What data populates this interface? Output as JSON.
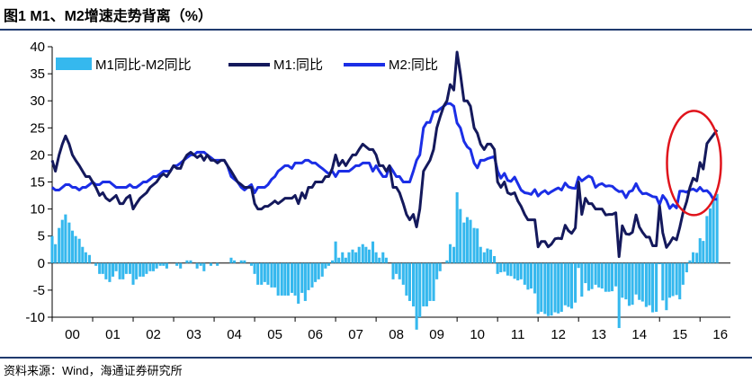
{
  "title": "图1  M1、M2增速走势背离（%）",
  "source": "资料来源：Wind，海通证券研究所",
  "chart_data": {
    "type": "bar+line",
    "ylim": [
      -10,
      40
    ],
    "yticks": [
      -10,
      -5,
      0,
      5,
      10,
      15,
      20,
      25,
      30,
      35,
      40
    ],
    "xticks": [
      "00",
      "01",
      "02",
      "03",
      "04",
      "05",
      "06",
      "07",
      "08",
      "09",
      "10",
      "11",
      "12",
      "13",
      "14",
      "15",
      "16"
    ],
    "x_start": 2000.0,
    "x_end": 2016.75,
    "legend": [
      "M1同比-M2同比",
      "M1:同比",
      "M2:同比"
    ],
    "legend_position": "top",
    "colors": {
      "diff": "#35b8ee",
      "m1": "#14195c",
      "m2": "#1b2ee6",
      "circle": "#e0141c"
    },
    "annotation": "red ellipse highlighting 2015–2016 divergence",
    "m1": [
      [
        2000.0,
        19
      ],
      [
        2000.08,
        17
      ],
      [
        2000.17,
        20
      ],
      [
        2000.25,
        22
      ],
      [
        2000.33,
        23.5
      ],
      [
        2000.42,
        22
      ],
      [
        2000.5,
        20
      ],
      [
        2000.58,
        19
      ],
      [
        2000.67,
        18
      ],
      [
        2000.75,
        17
      ],
      [
        2000.83,
        16
      ],
      [
        2000.92,
        16
      ],
      [
        2001.0,
        15
      ],
      [
        2001.08,
        14
      ],
      [
        2001.17,
        12.5
      ],
      [
        2001.25,
        13
      ],
      [
        2001.33,
        12
      ],
      [
        2001.42,
        11.5
      ],
      [
        2001.5,
        12
      ],
      [
        2001.58,
        12.5
      ],
      [
        2001.67,
        11
      ],
      [
        2001.75,
        11
      ],
      [
        2001.83,
        12
      ],
      [
        2001.92,
        12.5
      ],
      [
        2002.0,
        10
      ],
      [
        2002.08,
        11
      ],
      [
        2002.17,
        12
      ],
      [
        2002.25,
        12.5
      ],
      [
        2002.33,
        13
      ],
      [
        2002.42,
        14
      ],
      [
        2002.5,
        14.5
      ],
      [
        2002.58,
        15
      ],
      [
        2002.67,
        16
      ],
      [
        2002.75,
        16.5
      ],
      [
        2002.83,
        16
      ],
      [
        2002.92,
        17
      ],
      [
        2003.0,
        18
      ],
      [
        2003.08,
        17.5
      ],
      [
        2003.17,
        17.5
      ],
      [
        2003.25,
        19
      ],
      [
        2003.33,
        20
      ],
      [
        2003.42,
        20.5
      ],
      [
        2003.5,
        20
      ],
      [
        2003.58,
        19.5
      ],
      [
        2003.67,
        20
      ],
      [
        2003.75,
        19
      ],
      [
        2003.83,
        20
      ],
      [
        2003.92,
        19
      ],
      [
        2004.0,
        19
      ],
      [
        2004.08,
        18.5
      ],
      [
        2004.17,
        19
      ],
      [
        2004.25,
        19
      ],
      [
        2004.33,
        18
      ],
      [
        2004.42,
        17
      ],
      [
        2004.5,
        16
      ],
      [
        2004.58,
        15
      ],
      [
        2004.67,
        14.5
      ],
      [
        2004.75,
        14
      ],
      [
        2004.83,
        14
      ],
      [
        2004.92,
        14
      ],
      [
        2005.0,
        11
      ],
      [
        2005.08,
        10
      ],
      [
        2005.17,
        10
      ],
      [
        2005.25,
        10.5
      ],
      [
        2005.33,
        10.5
      ],
      [
        2005.42,
        11
      ],
      [
        2005.5,
        11.5
      ],
      [
        2005.58,
        11
      ],
      [
        2005.67,
        11.5
      ],
      [
        2005.75,
        12
      ],
      [
        2005.83,
        12
      ],
      [
        2005.92,
        12
      ],
      [
        2006.0,
        12.5
      ],
      [
        2006.08,
        11
      ],
      [
        2006.17,
        13
      ],
      [
        2006.25,
        12
      ],
      [
        2006.33,
        14
      ],
      [
        2006.42,
        14
      ],
      [
        2006.5,
        15
      ],
      [
        2006.58,
        15
      ],
      [
        2006.67,
        15
      ],
      [
        2006.75,
        16
      ],
      [
        2006.83,
        16
      ],
      [
        2006.92,
        17.5
      ],
      [
        2007.0,
        20
      ],
      [
        2007.08,
        18
      ],
      [
        2007.17,
        19
      ],
      [
        2007.25,
        18
      ],
      [
        2007.33,
        19
      ],
      [
        2007.42,
        20
      ],
      [
        2007.5,
        20
      ],
      [
        2007.58,
        21
      ],
      [
        2007.67,
        22
      ],
      [
        2007.75,
        21.5
      ],
      [
        2007.83,
        21
      ],
      [
        2007.92,
        21
      ],
      [
        2008.0,
        20
      ],
      [
        2008.08,
        18
      ],
      [
        2008.17,
        18
      ],
      [
        2008.25,
        17
      ],
      [
        2008.33,
        18
      ],
      [
        2008.42,
        14
      ],
      [
        2008.5,
        14
      ],
      [
        2008.58,
        13
      ],
      [
        2008.67,
        11
      ],
      [
        2008.75,
        9
      ],
      [
        2008.83,
        8
      ],
      [
        2008.92,
        9
      ],
      [
        2009.0,
        6.7
      ],
      [
        2009.08,
        10
      ],
      [
        2009.17,
        17
      ],
      [
        2009.25,
        18
      ],
      [
        2009.33,
        19
      ],
      [
        2009.42,
        21
      ],
      [
        2009.5,
        25
      ],
      [
        2009.58,
        27
      ],
      [
        2009.67,
        29
      ],
      [
        2009.75,
        30
      ],
      [
        2009.83,
        33
      ],
      [
        2009.92,
        32
      ],
      [
        2010.0,
        39
      ],
      [
        2010.08,
        35
      ],
      [
        2010.17,
        30
      ],
      [
        2010.25,
        30
      ],
      [
        2010.33,
        29
      ],
      [
        2010.42,
        25
      ],
      [
        2010.5,
        24
      ],
      [
        2010.58,
        22
      ],
      [
        2010.67,
        21
      ],
      [
        2010.75,
        22
      ],
      [
        2010.83,
        22
      ],
      [
        2010.92,
        21
      ],
      [
        2011.0,
        15
      ],
      [
        2011.08,
        14
      ],
      [
        2011.17,
        15
      ],
      [
        2011.25,
        13
      ],
      [
        2011.33,
        12.7
      ],
      [
        2011.42,
        13
      ],
      [
        2011.5,
        11.5
      ],
      [
        2011.58,
        10.5
      ],
      [
        2011.67,
        9
      ],
      [
        2011.75,
        8
      ],
      [
        2011.83,
        8
      ],
      [
        2011.92,
        8
      ],
      [
        2012.0,
        3
      ],
      [
        2012.08,
        4
      ],
      [
        2012.17,
        4
      ],
      [
        2012.25,
        3
      ],
      [
        2012.33,
        3.5
      ],
      [
        2012.42,
        4.5
      ],
      [
        2012.5,
        4.6
      ],
      [
        2012.58,
        4.5
      ],
      [
        2012.67,
        7
      ],
      [
        2012.75,
        6
      ],
      [
        2012.83,
        5.5
      ],
      [
        2012.92,
        6.5
      ],
      [
        2013.0,
        15
      ],
      [
        2013.08,
        9
      ],
      [
        2013.17,
        12
      ],
      [
        2013.25,
        11
      ],
      [
        2013.33,
        11
      ],
      [
        2013.42,
        10
      ],
      [
        2013.5,
        10
      ],
      [
        2013.58,
        10
      ],
      [
        2013.67,
        8.9
      ],
      [
        2013.75,
        9
      ],
      [
        2013.83,
        9
      ],
      [
        2013.92,
        9.3
      ],
      [
        2014.0,
        1.2
      ],
      [
        2014.08,
        6.9
      ],
      [
        2014.17,
        5.4
      ],
      [
        2014.25,
        5.3
      ],
      [
        2014.33,
        5.7
      ],
      [
        2014.42,
        8.9
      ],
      [
        2014.5,
        6.7
      ],
      [
        2014.58,
        5.7
      ],
      [
        2014.67,
        4.8
      ],
      [
        2014.75,
        4.8
      ],
      [
        2014.83,
        3.2
      ],
      [
        2014.92,
        3.2
      ],
      [
        2015.0,
        10.6
      ],
      [
        2015.08,
        5.6
      ],
      [
        2015.17,
        2.9
      ],
      [
        2015.25,
        3.7
      ],
      [
        2015.33,
        4.7
      ],
      [
        2015.42,
        4.3
      ],
      [
        2015.5,
        6.6
      ],
      [
        2015.58,
        9.3
      ],
      [
        2015.67,
        11.4
      ],
      [
        2015.75,
        14
      ],
      [
        2015.83,
        15.7
      ],
      [
        2015.92,
        15.2
      ],
      [
        2016.0,
        18.6
      ],
      [
        2016.08,
        17.4
      ],
      [
        2016.17,
        22.1
      ],
      [
        2016.25,
        22.9
      ],
      [
        2016.33,
        23.7
      ],
      [
        2016.42,
        24.6
      ]
    ],
    "m2": [
      [
        2000.0,
        14
      ],
      [
        2000.08,
        13.5
      ],
      [
        2000.17,
        13.5
      ],
      [
        2000.25,
        14
      ],
      [
        2000.33,
        14.5
      ],
      [
        2000.42,
        14.5
      ],
      [
        2000.5,
        14
      ],
      [
        2000.58,
        14
      ],
      [
        2000.67,
        13.5
      ],
      [
        2000.75,
        14
      ],
      [
        2000.83,
        14
      ],
      [
        2000.92,
        14.5
      ],
      [
        2001.0,
        15
      ],
      [
        2001.08,
        14.5
      ],
      [
        2001.17,
        14.5
      ],
      [
        2001.25,
        15
      ],
      [
        2001.33,
        15
      ],
      [
        2001.42,
        15
      ],
      [
        2001.5,
        14.5
      ],
      [
        2001.58,
        14
      ],
      [
        2001.67,
        14
      ],
      [
        2001.75,
        14
      ],
      [
        2001.83,
        14
      ],
      [
        2001.92,
        14.5
      ],
      [
        2002.0,
        14
      ],
      [
        2002.08,
        14
      ],
      [
        2002.17,
        14.5
      ],
      [
        2002.25,
        15
      ],
      [
        2002.33,
        15
      ],
      [
        2002.42,
        15.5
      ],
      [
        2002.5,
        16
      ],
      [
        2002.58,
        16
      ],
      [
        2002.67,
        16.5
      ],
      [
        2002.75,
        17
      ],
      [
        2002.83,
        17
      ],
      [
        2002.92,
        17
      ],
      [
        2003.0,
        18
      ],
      [
        2003.08,
        18
      ],
      [
        2003.17,
        18.5
      ],
      [
        2003.25,
        19
      ],
      [
        2003.33,
        19.5
      ],
      [
        2003.42,
        20
      ],
      [
        2003.5,
        20
      ],
      [
        2003.58,
        20.5
      ],
      [
        2003.67,
        20.5
      ],
      [
        2003.75,
        20.5
      ],
      [
        2003.83,
        20
      ],
      [
        2003.92,
        19.5
      ],
      [
        2004.0,
        19
      ],
      [
        2004.08,
        19
      ],
      [
        2004.17,
        19
      ],
      [
        2004.25,
        19
      ],
      [
        2004.33,
        18
      ],
      [
        2004.42,
        16
      ],
      [
        2004.5,
        15.5
      ],
      [
        2004.58,
        15
      ],
      [
        2004.67,
        14
      ],
      [
        2004.75,
        13.5
      ],
      [
        2004.83,
        14
      ],
      [
        2004.92,
        14.5
      ],
      [
        2005.0,
        13
      ],
      [
        2005.08,
        14
      ],
      [
        2005.17,
        14
      ],
      [
        2005.25,
        14
      ],
      [
        2005.33,
        14.5
      ],
      [
        2005.42,
        15.5
      ],
      [
        2005.5,
        16
      ],
      [
        2005.58,
        17
      ],
      [
        2005.67,
        17.5
      ],
      [
        2005.75,
        18
      ],
      [
        2005.83,
        18
      ],
      [
        2005.92,
        17.5
      ],
      [
        2006.0,
        18.5
      ],
      [
        2006.08,
        18.5
      ],
      [
        2006.17,
        18.5
      ],
      [
        2006.25,
        19
      ],
      [
        2006.33,
        19
      ],
      [
        2006.42,
        18.5
      ],
      [
        2006.5,
        18.5
      ],
      [
        2006.58,
        18
      ],
      [
        2006.67,
        17.5
      ],
      [
        2006.75,
        17
      ],
      [
        2006.83,
        16.5
      ],
      [
        2006.92,
        17
      ],
      [
        2007.0,
        16
      ],
      [
        2007.08,
        17
      ],
      [
        2007.17,
        17
      ],
      [
        2007.25,
        17
      ],
      [
        2007.33,
        17
      ],
      [
        2007.42,
        17.5
      ],
      [
        2007.5,
        18
      ],
      [
        2007.58,
        18
      ],
      [
        2007.67,
        18.5
      ],
      [
        2007.75,
        18.5
      ],
      [
        2007.83,
        18.5
      ],
      [
        2007.92,
        17
      ],
      [
        2008.0,
        18
      ],
      [
        2008.08,
        17
      ],
      [
        2008.17,
        16
      ],
      [
        2008.25,
        16
      ],
      [
        2008.33,
        18
      ],
      [
        2008.42,
        17
      ],
      [
        2008.5,
        16
      ],
      [
        2008.58,
        16
      ],
      [
        2008.67,
        15
      ],
      [
        2008.75,
        15
      ],
      [
        2008.83,
        15
      ],
      [
        2008.92,
        17
      ],
      [
        2009.0,
        19
      ],
      [
        2009.08,
        20
      ],
      [
        2009.17,
        25
      ],
      [
        2009.25,
        26
      ],
      [
        2009.33,
        26
      ],
      [
        2009.42,
        28
      ],
      [
        2009.5,
        28
      ],
      [
        2009.58,
        28.5
      ],
      [
        2009.67,
        29
      ],
      [
        2009.75,
        29.5
      ],
      [
        2009.83,
        29.5
      ],
      [
        2009.92,
        29
      ],
      [
        2010.0,
        25.9
      ],
      [
        2010.08,
        25
      ],
      [
        2010.17,
        22.5
      ],
      [
        2010.25,
        21.5
      ],
      [
        2010.33,
        21
      ],
      [
        2010.42,
        18.5
      ],
      [
        2010.5,
        17.6
      ],
      [
        2010.58,
        19
      ],
      [
        2010.67,
        19
      ],
      [
        2010.75,
        19.3
      ],
      [
        2010.83,
        19.5
      ],
      [
        2010.92,
        19.7
      ],
      [
        2011.0,
        17
      ],
      [
        2011.08,
        15.7
      ],
      [
        2011.17,
        16.6
      ],
      [
        2011.25,
        15.3
      ],
      [
        2011.33,
        15.1
      ],
      [
        2011.42,
        15.9
      ],
      [
        2011.5,
        14.7
      ],
      [
        2011.58,
        13.5
      ],
      [
        2011.67,
        13
      ],
      [
        2011.75,
        12.9
      ],
      [
        2011.83,
        12.7
      ],
      [
        2011.92,
        13.6
      ],
      [
        2012.0,
        12.4
      ],
      [
        2012.08,
        13
      ],
      [
        2012.17,
        13.4
      ],
      [
        2012.25,
        12.8
      ],
      [
        2012.33,
        13.2
      ],
      [
        2012.42,
        13.6
      ],
      [
        2012.5,
        13.9
      ],
      [
        2012.58,
        13.5
      ],
      [
        2012.67,
        14.8
      ],
      [
        2012.75,
        14.1
      ],
      [
        2012.83,
        13.9
      ],
      [
        2012.92,
        13.8
      ],
      [
        2013.0,
        15.9
      ],
      [
        2013.08,
        15.2
      ],
      [
        2013.17,
        15.7
      ],
      [
        2013.25,
        16.1
      ],
      [
        2013.33,
        15.8
      ],
      [
        2013.42,
        14
      ],
      [
        2013.5,
        14.5
      ],
      [
        2013.58,
        14.7
      ],
      [
        2013.67,
        14.2
      ],
      [
        2013.75,
        14.3
      ],
      [
        2013.83,
        14.2
      ],
      [
        2013.92,
        13.6
      ],
      [
        2014.0,
        13.2
      ],
      [
        2014.08,
        13.3
      ],
      [
        2014.17,
        12.1
      ],
      [
        2014.25,
        13.2
      ],
      [
        2014.33,
        13.4
      ],
      [
        2014.42,
        14.7
      ],
      [
        2014.5,
        13.5
      ],
      [
        2014.58,
        12.8
      ],
      [
        2014.67,
        12.9
      ],
      [
        2014.75,
        12.6
      ],
      [
        2014.83,
        12.3
      ],
      [
        2014.92,
        12.2
      ],
      [
        2015.0,
        10.8
      ],
      [
        2015.08,
        12.5
      ],
      [
        2015.17,
        11.6
      ],
      [
        2015.25,
        10.1
      ],
      [
        2015.33,
        10.8
      ],
      [
        2015.42,
        10.2
      ],
      [
        2015.5,
        13.3
      ],
      [
        2015.58,
        13.3
      ],
      [
        2015.67,
        13.1
      ],
      [
        2015.75,
        13.5
      ],
      [
        2015.83,
        13.7
      ],
      [
        2015.92,
        13.3
      ],
      [
        2016.0,
        14
      ],
      [
        2016.08,
        13.3
      ],
      [
        2016.17,
        13.4
      ],
      [
        2016.25,
        12.8
      ],
      [
        2016.33,
        11.8
      ],
      [
        2016.42,
        11.8
      ]
    ]
  }
}
